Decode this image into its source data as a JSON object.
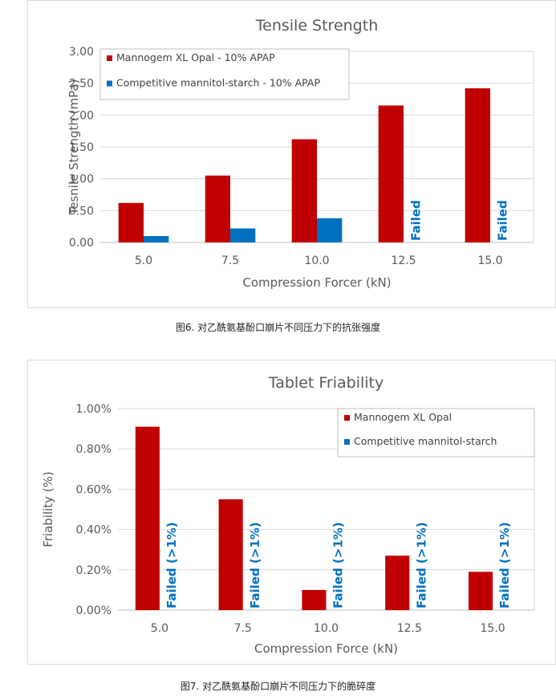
{
  "colors": {
    "series1": "#C00000",
    "series2": "#0070C0",
    "grid": "#d9d9d9",
    "text": "#595959"
  },
  "chart_data": [
    {
      "type": "bar",
      "title": "Tensile Strength",
      "xlabel": "Compression Forcer (kN)",
      "ylabel": "Tesnile Strength (mPa)",
      "ylim": [
        0,
        3.0
      ],
      "yticks": [
        "0.00",
        "0.50",
        "1.00",
        "1.50",
        "2.00",
        "2.50",
        "3.00"
      ],
      "categories": [
        "5.0",
        "7.5",
        "10.0",
        "12.5",
        "15.0"
      ],
      "series": [
        {
          "name": "Mannogem XL Opal - 10% APAP",
          "values": [
            0.62,
            1.05,
            1.62,
            2.15,
            2.42
          ]
        },
        {
          "name": "Competitive mannitol-starch - 10% APAP",
          "values": [
            0.1,
            0.22,
            0.38,
            null,
            null
          ]
        }
      ],
      "annotations": [
        {
          "category": "12.5",
          "series": 1,
          "text": "Failed"
        },
        {
          "category": "15.0",
          "series": 1,
          "text": "Failed"
        }
      ],
      "grid": true,
      "legend": "top-left"
    },
    {
      "type": "bar",
      "title": "Tablet Friability",
      "xlabel": "Compression Force (kN)",
      "ylabel": "Friability (%)",
      "ylim": [
        0,
        1.0
      ],
      "yticks": [
        "0.00%",
        "0.20%",
        "0.40%",
        "0.60%",
        "0.80%",
        "1.00%"
      ],
      "categories": [
        "5.0",
        "7.5",
        "10.0",
        "12.5",
        "15.0"
      ],
      "series": [
        {
          "name": "Mannogem XL Opal",
          "values": [
            0.91,
            0.55,
            0.1,
            0.27,
            0.19
          ]
        },
        {
          "name": "Competitive mannitol-starch",
          "values": [
            null,
            null,
            null,
            null,
            null
          ]
        }
      ],
      "annotations": [
        {
          "category": "5.0",
          "series": 1,
          "text": "Failed (>1%)"
        },
        {
          "category": "7.5",
          "series": 1,
          "text": "Failed (>1%)"
        },
        {
          "category": "10.0",
          "series": 1,
          "text": "Failed (>1%)"
        },
        {
          "category": "12.5",
          "series": 1,
          "text": "Failed (>1%)"
        },
        {
          "category": "15.0",
          "series": 1,
          "text": "Failed (>1%)"
        }
      ],
      "grid": true,
      "legend": "top-right"
    }
  ],
  "captions": {
    "fig6": "图6. 对乙酰氨基酚口崩片不同压力下的抗张强度",
    "fig7": "图7. 对乙酰氨基酚口崩片不同压力下的脆碎度"
  }
}
